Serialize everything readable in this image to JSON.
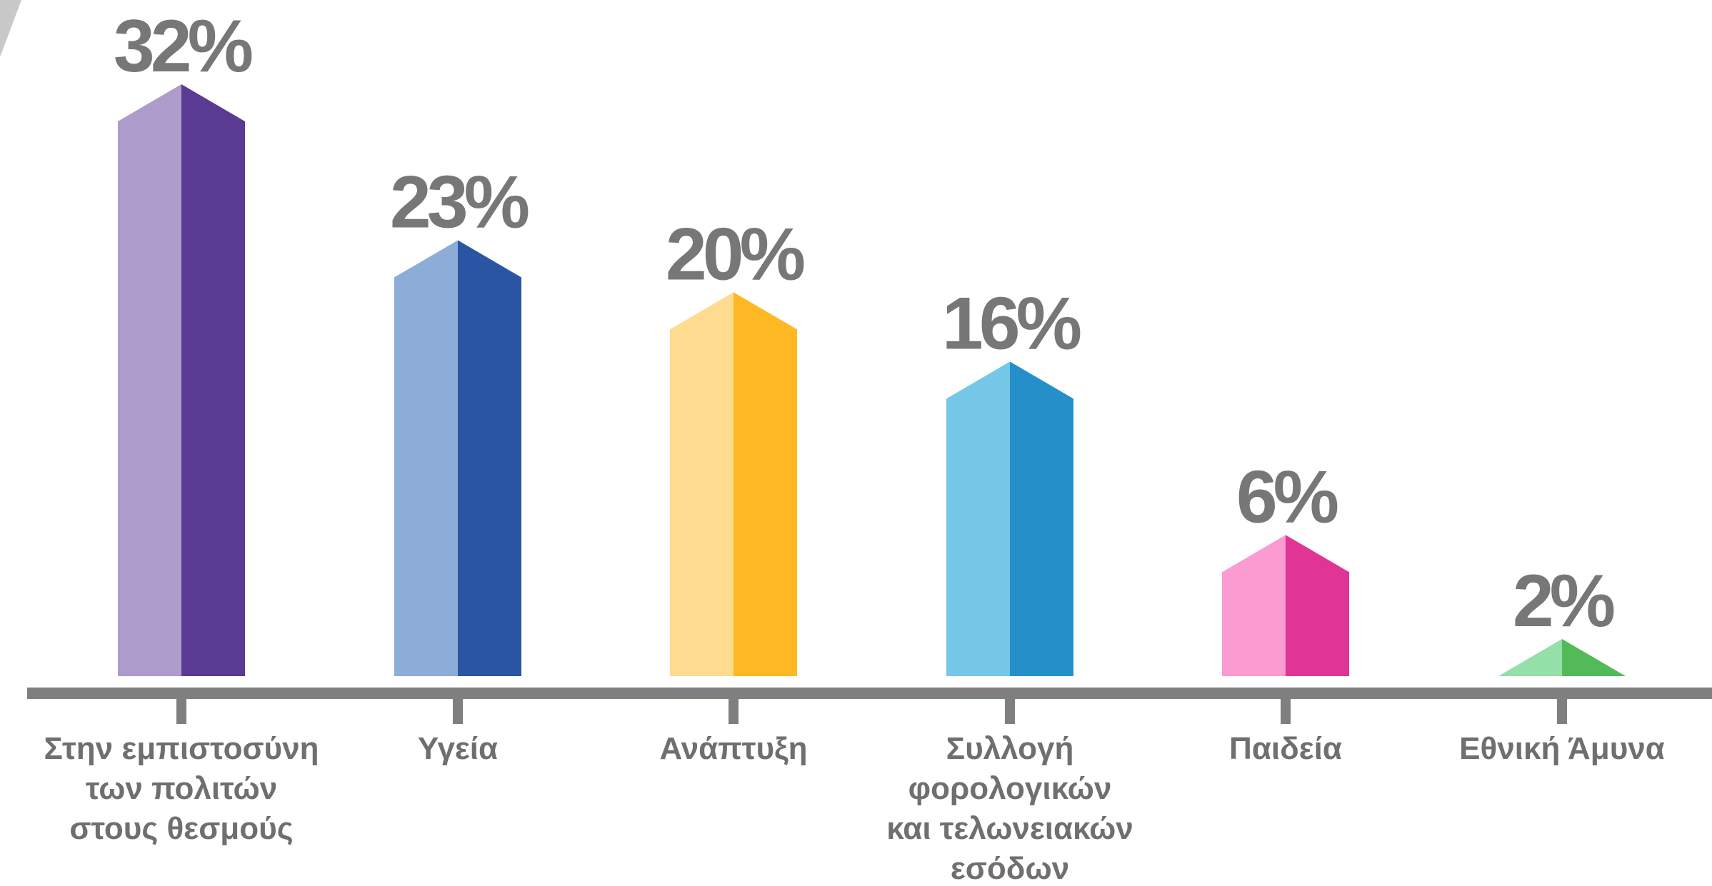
{
  "chart_data": {
    "type": "bar",
    "style": "3d-prism-bars",
    "categories": [
      [
        "Στην εμπιστοσύνη",
        "των πολιτών",
        "στους θεσμούς"
      ],
      [
        "Υγεία"
      ],
      [
        "Ανάπτυξη"
      ],
      [
        "Συλλογή",
        "φορολογικών",
        "και τελωνειακών",
        "εσόδων"
      ],
      [
        "Παιδεία"
      ],
      [
        "Εθνική Άμυνα"
      ]
    ],
    "values": [
      32,
      23,
      20,
      16,
      6,
      2
    ],
    "value_labels": [
      "32%",
      "23%",
      "20%",
      "16%",
      "6%",
      "2%"
    ],
    "ylim": [
      0,
      32
    ],
    "grid": false,
    "legend": "none",
    "colors": [
      {
        "light": "#ad9ccb",
        "dark": "#593b93"
      },
      {
        "light": "#8badd7",
        "dark": "#2a55a3"
      },
      {
        "light": "#fedb8f",
        "dark": "#fdb823"
      },
      {
        "light": "#74c7e7",
        "dark": "#248fc8"
      },
      {
        "light": "#fb9bd1",
        "dark": "#e03594"
      },
      {
        "light": "#93e0a9",
        "dark": "#52bb57"
      }
    ],
    "axis_color": "#7f7f7f",
    "label_color": "#777777"
  }
}
